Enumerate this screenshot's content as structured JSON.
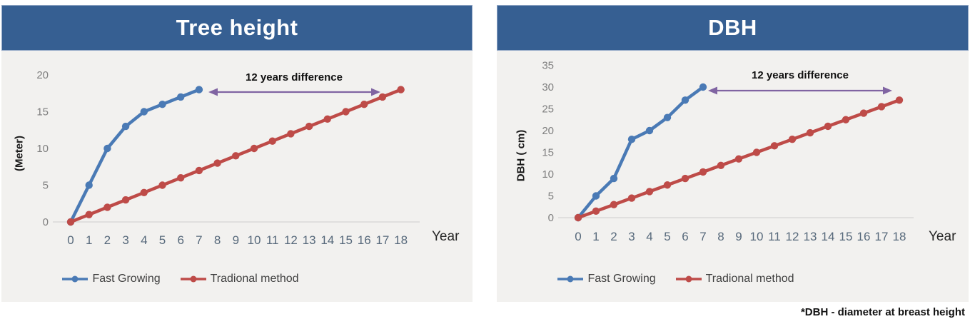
{
  "footnote": "*DBH - diameter at breast height",
  "colors": {
    "header_bg": "#365F92",
    "header_text": "#FFFFFF",
    "panel_bg": "#F2F1EF",
    "fast_growing_blue": "#4A7AB5",
    "traditional_red": "#BE4B48",
    "arrow_purple": "#8064A2",
    "axis_line": "#D9D9D9",
    "y_tick_text": "#7F7F7F",
    "x_tick_text": "#57697B"
  },
  "chart_data": [
    {
      "type": "line",
      "title": "Tree height",
      "ylabel": "(Meter)",
      "xlabel": "Year",
      "annotation": "12 years difference",
      "grid": false,
      "legend_position": "bottom",
      "x": [
        0,
        1,
        2,
        3,
        4,
        5,
        6,
        7,
        8,
        9,
        10,
        11,
        12,
        13,
        14,
        15,
        16,
        17,
        18
      ],
      "y_ticks": [
        0,
        5,
        10,
        15,
        20
      ],
      "ylim": [
        0,
        20
      ],
      "series": [
        {
          "name": "Fast Growing",
          "color": "#4A7AB5",
          "x": [
            0,
            1,
            2,
            3,
            4,
            5,
            6,
            7
          ],
          "values": [
            0,
            5,
            10,
            13,
            15,
            16,
            17,
            18
          ]
        },
        {
          "name": "Tradional method",
          "color": "#BE4B48",
          "x": [
            0,
            1,
            2,
            3,
            4,
            5,
            6,
            7,
            8,
            9,
            10,
            11,
            12,
            13,
            14,
            15,
            16,
            17,
            18
          ],
          "values": [
            0,
            1,
            2,
            3,
            4,
            5,
            6,
            7,
            8,
            9,
            10,
            11,
            12,
            13,
            14,
            15,
            16,
            17,
            18
          ]
        }
      ]
    },
    {
      "type": "line",
      "title": "DBH",
      "ylabel": "DBH ( cm)",
      "xlabel": "Year",
      "annotation": "12 years difference",
      "grid": false,
      "legend_position": "bottom",
      "x": [
        0,
        1,
        2,
        3,
        4,
        5,
        6,
        7,
        8,
        9,
        10,
        11,
        12,
        13,
        14,
        15,
        16,
        17,
        18
      ],
      "y_ticks": [
        0,
        5,
        10,
        15,
        20,
        25,
        30,
        35
      ],
      "ylim": [
        0,
        35
      ],
      "series": [
        {
          "name": "Fast Growing",
          "color": "#4A7AB5",
          "x": [
            0,
            1,
            2,
            3,
            4,
            5,
            6,
            7
          ],
          "values": [
            0,
            5,
            9,
            18,
            20,
            23,
            27,
            30
          ]
        },
        {
          "name": "Tradional method",
          "color": "#BE4B48",
          "x": [
            0,
            1,
            2,
            3,
            4,
            5,
            6,
            7,
            8,
            9,
            10,
            11,
            12,
            13,
            14,
            15,
            16,
            17,
            18
          ],
          "values": [
            0,
            1.5,
            3,
            4.5,
            6,
            7.5,
            9,
            10.5,
            12,
            13.5,
            15,
            16.5,
            18,
            19.5,
            21,
            22.5,
            24,
            25.5,
            27
          ]
        }
      ]
    }
  ]
}
